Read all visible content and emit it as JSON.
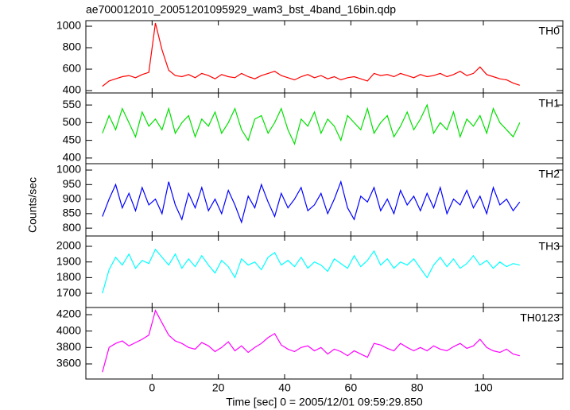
{
  "chart_data": {
    "type": "line",
    "title": "ae700012010_20051201095929_wam3_bst_4band_16bin.qdp",
    "xlabel": "Time [sec] 0 = 2005/12/01 09:59:29.850",
    "ylabel": "Counts/sec",
    "xlim": [
      -20,
      124
    ],
    "xticks": [
      0,
      20,
      40,
      60,
      80,
      100
    ],
    "x": [
      -15,
      -13,
      -11,
      -9,
      -7,
      -5,
      -3,
      -1,
      1,
      3,
      5,
      7,
      9,
      11,
      13,
      15,
      17,
      19,
      21,
      23,
      25,
      27,
      29,
      31,
      33,
      35,
      37,
      39,
      41,
      43,
      45,
      47,
      49,
      51,
      53,
      55,
      57,
      59,
      61,
      63,
      65,
      67,
      69,
      71,
      73,
      75,
      77,
      79,
      81,
      83,
      85,
      87,
      89,
      91,
      93,
      95,
      97,
      99,
      101,
      103,
      105,
      107,
      109,
      111
    ],
    "panels": [
      {
        "name": "TH0",
        "color": "#ff0000",
        "ylim": [
          378,
          1052
        ],
        "yticks": [
          400,
          600,
          800,
          1000
        ],
        "values": [
          440,
          490,
          510,
          530,
          540,
          520,
          550,
          570,
          1030,
          780,
          590,
          540,
          530,
          550,
          520,
          560,
          540,
          510,
          550,
          530,
          520,
          560,
          530,
          510,
          540,
          560,
          580,
          540,
          520,
          500,
          530,
          550,
          520,
          540,
          510,
          530,
          500,
          520,
          530,
          510,
          490,
          560,
          540,
          550,
          530,
          560,
          540,
          520,
          550,
          530,
          540,
          560,
          530,
          550,
          580,
          540,
          560,
          620,
          550,
          530,
          510,
          500,
          470,
          450
        ]
      },
      {
        "name": "TH1",
        "color": "#00e000",
        "ylim": [
          384,
          584
        ],
        "yticks": [
          400,
          450,
          500,
          550
        ],
        "values": [
          470,
          520,
          480,
          540,
          500,
          460,
          530,
          490,
          510,
          480,
          540,
          470,
          500,
          520,
          460,
          510,
          490,
          530,
          470,
          500,
          540,
          480,
          450,
          510,
          520,
          470,
          500,
          540,
          480,
          440,
          510,
          490,
          530,
          470,
          510,
          490,
          450,
          520,
          500,
          480,
          540,
          470,
          500,
          520,
          460,
          490,
          530,
          480,
          510,
          550,
          470,
          500,
          480,
          530,
          460,
          510,
          490,
          520,
          470,
          540,
          500,
          480,
          460,
          500
        ]
      },
      {
        "name": "TH2",
        "color": "#0000ff",
        "ylim": [
          773,
          1022
        ],
        "yticks": [
          800,
          850,
          900,
          950,
          1000
        ],
        "values": [
          840,
          900,
          950,
          870,
          920,
          860,
          940,
          880,
          900,
          850,
          960,
          880,
          830,
          920,
          870,
          940,
          860,
          900,
          850,
          930,
          880,
          820,
          910,
          870,
          950,
          890,
          840,
          920,
          870,
          900,
          940,
          860,
          880,
          920,
          850,
          900,
          960,
          870,
          830,
          910,
          890,
          940,
          860,
          900,
          850,
          930,
          880,
          910,
          860,
          920,
          870,
          940,
          850,
          900,
          880,
          930,
          870,
          910,
          850,
          940,
          880,
          900,
          860,
          890
        ]
      },
      {
        "name": "TH3",
        "color": "#00ffff",
        "ylim": [
          1609,
          2066
        ],
        "yticks": [
          1700,
          1800,
          1900,
          2000
        ],
        "values": [
          1700,
          1850,
          1930,
          1880,
          1950,
          1860,
          1910,
          1890,
          1980,
          1930,
          1880,
          1950,
          1860,
          1920,
          1870,
          1940,
          1880,
          1830,
          1910,
          1870,
          1800,
          1920,
          1880,
          1900,
          1850,
          1930,
          1960,
          1880,
          1910,
          1870,
          1930,
          1860,
          1900,
          1880,
          1840,
          1920,
          1890,
          1860,
          1940,
          1870,
          1910,
          1970,
          1880,
          1920,
          1860,
          1900,
          1880,
          1920,
          1860,
          1800,
          1880,
          1930,
          1870,
          1920,
          1860,
          1890,
          1940,
          1880,
          1910,
          1860,
          1900,
          1870,
          1890,
          1880
        ]
      },
      {
        "name": "TH0123",
        "color": "#ff00ff",
        "ylim": [
          3416,
          4287
        ],
        "yticks": [
          3600,
          3800,
          4000,
          4200
        ],
        "values": [
          3500,
          3800,
          3850,
          3880,
          3820,
          3860,
          3900,
          3950,
          4250,
          4100,
          3950,
          3880,
          3850,
          3800,
          3780,
          3860,
          3820,
          3750,
          3800,
          3870,
          3760,
          3820,
          3740,
          3800,
          3850,
          3920,
          3970,
          3830,
          3780,
          3750,
          3800,
          3820,
          3760,
          3800,
          3720,
          3780,
          3750,
          3700,
          3760,
          3720,
          3680,
          3850,
          3830,
          3790,
          3760,
          3850,
          3800,
          3760,
          3800,
          3760,
          3820,
          3780,
          3760,
          3810,
          3850,
          3790,
          3820,
          3900,
          3800,
          3760,
          3740,
          3780,
          3720,
          3700
        ]
      }
    ]
  }
}
